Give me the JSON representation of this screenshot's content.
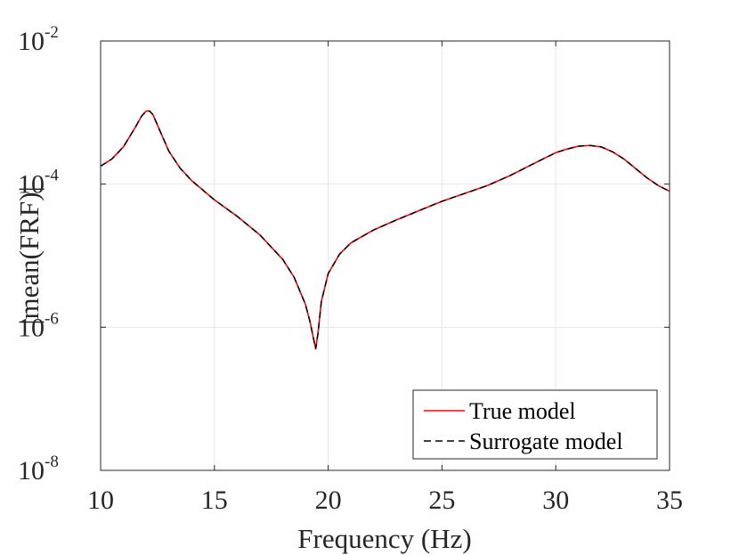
{
  "chart_data": {
    "type": "line",
    "xlabel": "Frequency (Hz)",
    "ylabel": "|mean(FRF)|",
    "xlim": [
      10,
      35
    ],
    "ylim_log10": [
      -8,
      -2
    ],
    "yscale": "log",
    "grid": true,
    "x_ticks": [
      {
        "value": 10,
        "label": "10"
      },
      {
        "value": 15,
        "label": "15"
      },
      {
        "value": 20,
        "label": "20"
      },
      {
        "value": 25,
        "label": "25"
      },
      {
        "value": 30,
        "label": "30"
      },
      {
        "value": 35,
        "label": "35"
      }
    ],
    "y_ticks": [
      {
        "exp": -8,
        "base": "10",
        "sup": "-8"
      },
      {
        "exp": -6,
        "base": "10",
        "sup": "-6"
      },
      {
        "exp": -4,
        "base": "10",
        "sup": "-4"
      },
      {
        "exp": -2,
        "base": "10",
        "sup": "-2"
      }
    ],
    "legend_position": "bottom-right",
    "x": [
      10,
      10.5,
      11,
      11.5,
      11.8,
      12,
      12.15,
      12.3,
      12.6,
      13,
      13.5,
      14,
      15,
      16,
      17,
      18,
      18.5,
      19,
      19.2,
      19.35,
      19.45,
      19.55,
      19.7,
      20,
      20.5,
      21,
      22,
      23,
      24,
      25,
      26,
      27,
      28,
      29,
      30,
      30.5,
      31,
      31.5,
      32,
      32.5,
      33,
      33.5,
      34,
      34.5,
      35
    ],
    "series": [
      {
        "name": "True model",
        "color": "#ff0000",
        "dash": "solid",
        "values": [
          0.000178,
          0.000225,
          0.000331,
          0.000603,
          0.000891,
          0.00105,
          0.00105,
          0.000933,
          0.000562,
          0.000288,
          0.000166,
          0.000112,
          6.03e-05,
          3.55e-05,
          1.95e-05,
          8.91e-06,
          5.01e-06,
          2.09e-06,
          1.2e-06,
          7.08e-07,
          5.01e-07,
          8.13e-07,
          2.29e-06,
          5.62e-06,
          1.05e-05,
          1.51e-05,
          2.29e-05,
          3.16e-05,
          4.27e-05,
          5.75e-05,
          7.41e-05,
          9.55e-05,
          0.000132,
          0.000191,
          0.000275,
          0.000309,
          0.000339,
          0.000347,
          0.000331,
          0.000282,
          0.000224,
          0.000166,
          0.000123,
          9.55e-05,
          7.94e-05
        ]
      },
      {
        "name": "Surrogate model",
        "color": "#000000",
        "dash": "dashed",
        "values": [
          0.000178,
          0.000225,
          0.000331,
          0.000603,
          0.000891,
          0.00105,
          0.00105,
          0.000933,
          0.000562,
          0.000288,
          0.000166,
          0.000112,
          6.03e-05,
          3.55e-05,
          1.95e-05,
          8.91e-06,
          5.01e-06,
          2.09e-06,
          1.2e-06,
          7.08e-07,
          5.01e-07,
          8.13e-07,
          2.29e-06,
          5.62e-06,
          1.05e-05,
          1.51e-05,
          2.29e-05,
          3.16e-05,
          4.27e-05,
          5.75e-05,
          7.41e-05,
          9.55e-05,
          0.000132,
          0.000191,
          0.000275,
          0.000309,
          0.000339,
          0.000347,
          0.000331,
          0.000282,
          0.000224,
          0.000166,
          0.000123,
          9.55e-05,
          7.94e-05
        ]
      }
    ]
  }
}
